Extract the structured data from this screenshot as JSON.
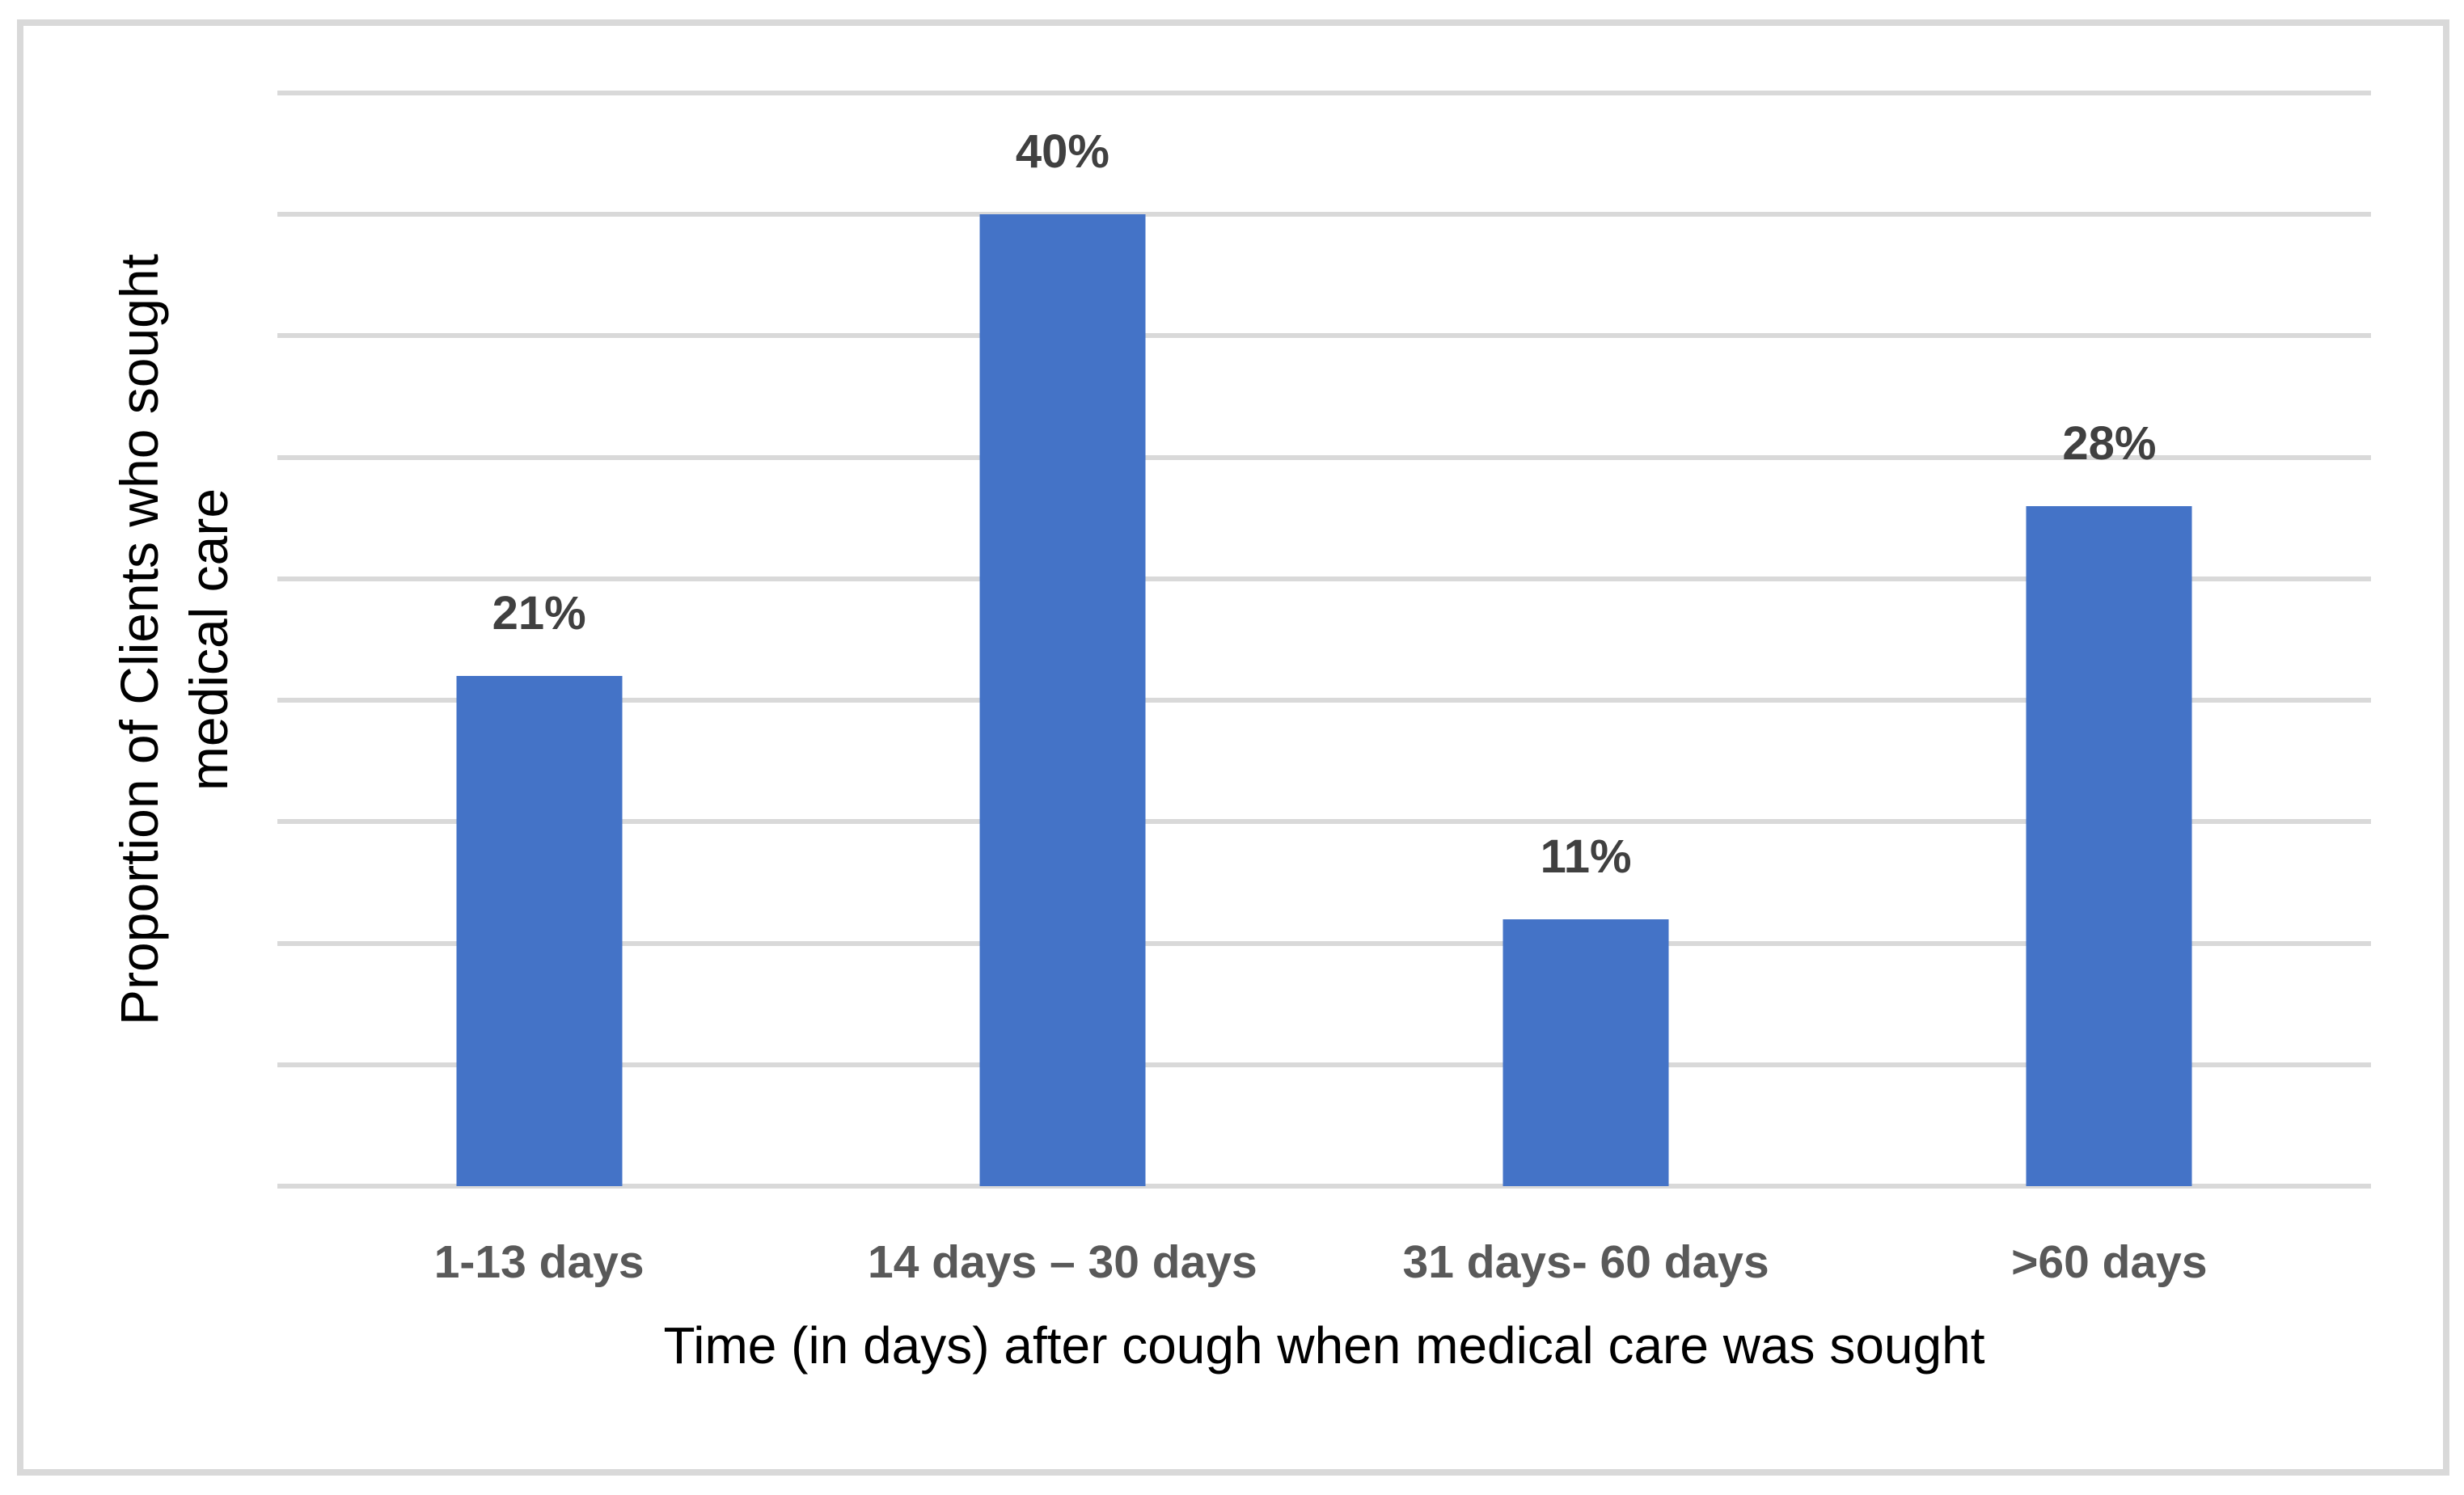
{
  "chart_data": {
    "type": "bar",
    "categories": [
      "1-13 days",
      "14 days – 30 days",
      "31 days- 60 days",
      ">60 days"
    ],
    "values": [
      21,
      40,
      11,
      28
    ],
    "data_labels": [
      "21%",
      "40%",
      "11%",
      "28%"
    ],
    "xlabel": "Time (in days) after cough when medical care was sought",
    "ylabel_line1": "Proportion of Clients who sought",
    "ylabel_line2": "medical care",
    "ylim": [
      0,
      45
    ],
    "gridline_step": 5,
    "grid": true,
    "legend": "none",
    "y_tick_labels_visible": false,
    "colors": {
      "bar_fill": "#4473c7",
      "gridline": "#d9d9d9",
      "frame_border": "#d9d9d9",
      "data_label_text": "#404040",
      "tick_label_text": "#595959",
      "axis_title_text": "#000000",
      "background": "#ffffff"
    }
  }
}
